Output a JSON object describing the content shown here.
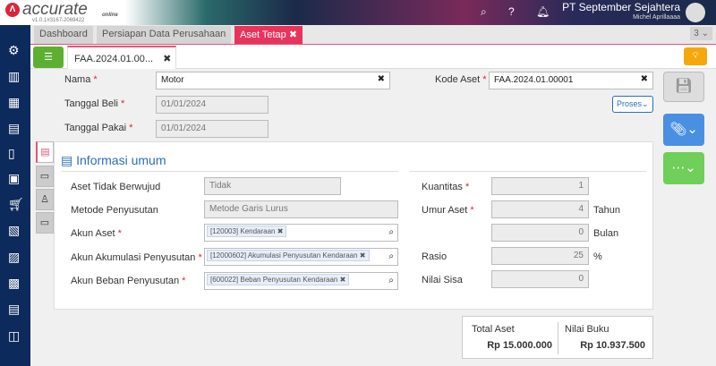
{
  "header": {
    "brand": "accurate",
    "brand_sub": "online",
    "version": "v1.0.1#3167-2069422",
    "company": "PT September Sejahtera",
    "user": "Michel Aprillaaaa"
  },
  "tabs": [
    {
      "label": "Dashboard"
    },
    {
      "label": "Persiapan Data Perusahaan"
    },
    {
      "label": "Aset Tetap",
      "active": true
    }
  ],
  "tab_count": "3",
  "doc_tab": "FAA.2024.01.00...",
  "form": {
    "nama_label": "Nama",
    "nama": "Motor",
    "kode_label": "Kode Aset",
    "kode": "FAA.2024.01.00001",
    "tgl_beli_label": "Tanggal Beli",
    "tgl_beli": "01/01/2024",
    "tgl_pakai_label": "Tanggal Pakai",
    "tgl_pakai": "01/01/2024",
    "proses": "Proses"
  },
  "info": {
    "title": "Informasi umum",
    "aset_tidak_berwujud_label": "Aset Tidak Berwujud",
    "aset_tidak_berwujud": "Tidak",
    "metode_label": "Metode Penyusutan",
    "metode": "Metode Garis Lurus",
    "akun_aset_label": "Akun Aset",
    "akun_aset": "[120003] Kendaraan",
    "akun_akum_label": "Akun Akumulasi Penyusutan",
    "akun_akum": "[12000602] Akumulasi Penyusutan Kendaraan",
    "akun_beban_label": "Akun Beban Penyusutan",
    "akun_beban": "[600022] Beban Penyusutan Kendaraan",
    "kuantitas_label": "Kuantitas",
    "kuantitas": "1",
    "umur_label": "Umur Aset",
    "umur_tahun": "4",
    "tahun": "Tahun",
    "umur_bulan": "0",
    "bulan": "Bulan",
    "rasio_label": "Rasio",
    "rasio": "25",
    "pct": "%",
    "nilai_sisa_label": "Nilai Sisa",
    "nilai_sisa": "0"
  },
  "totals": {
    "total_label": "Total Aset",
    "total": "Rp 15.000.000",
    "buku_label": "Nilai Buku",
    "buku": "Rp 10.937.500"
  },
  "colors": {
    "accent": "#e8345c",
    "sidebar": "#0d2a5c",
    "green": "#5cb030",
    "blue": "#4a90e2",
    "orange": "#f5a80a"
  }
}
